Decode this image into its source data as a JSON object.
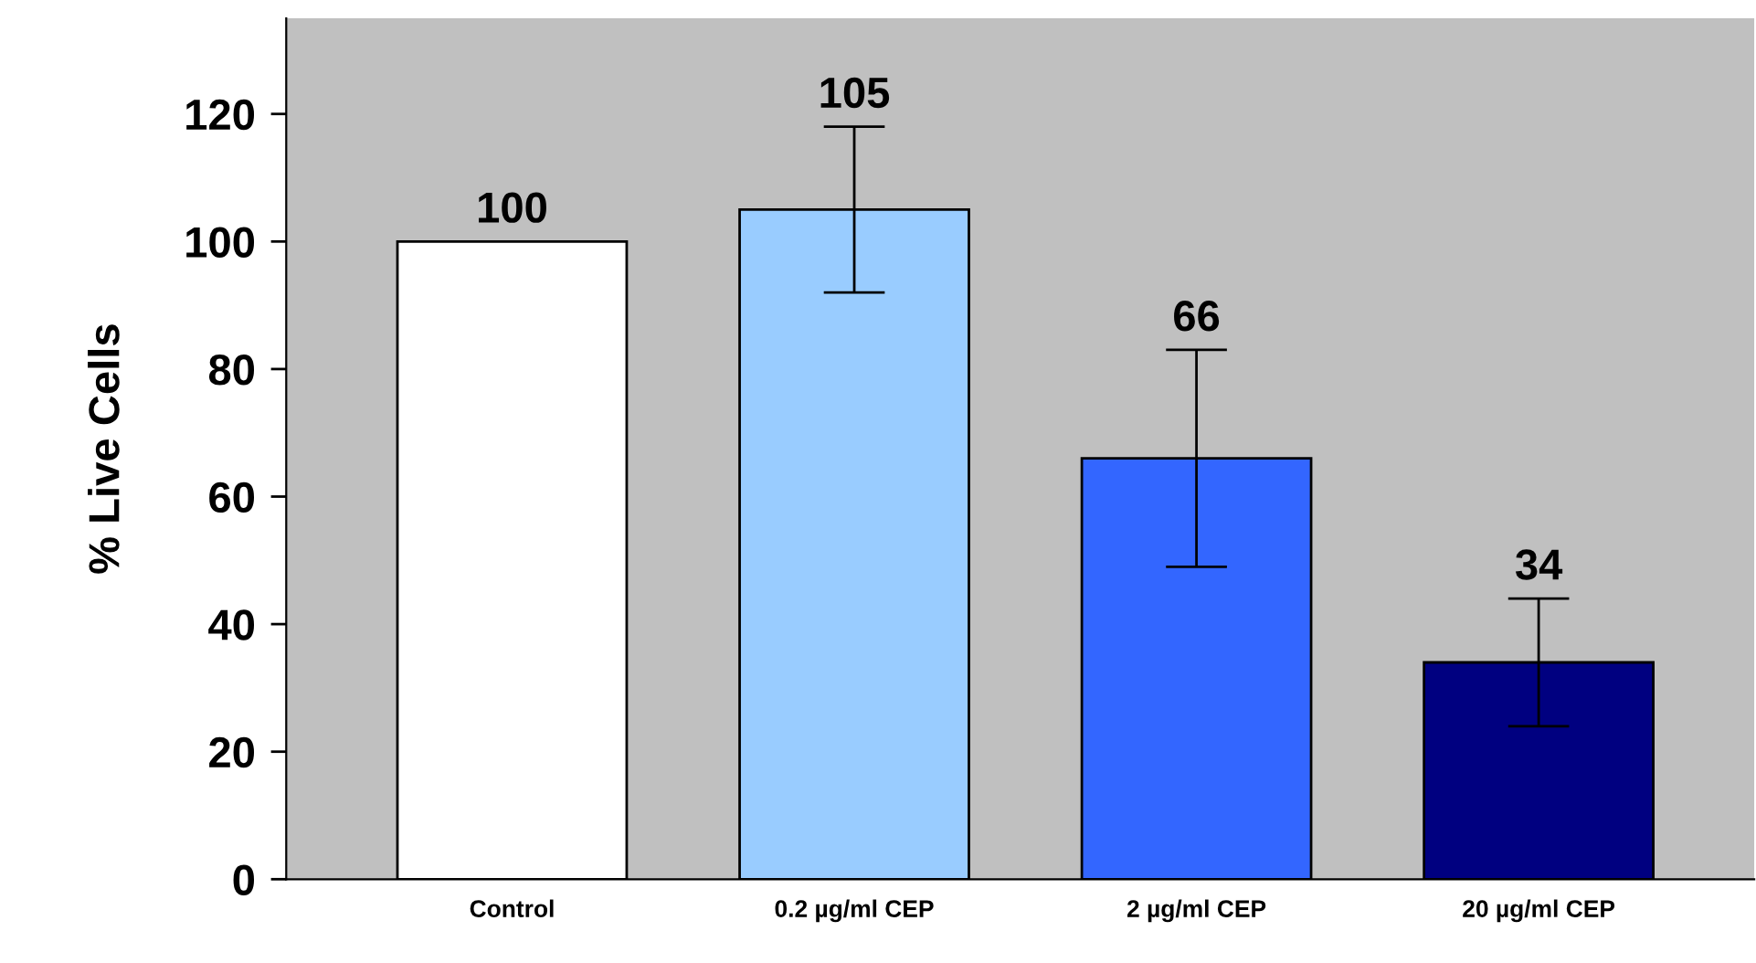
{
  "chart_data": {
    "type": "bar",
    "ylabel": "% Live Cells",
    "categories": [
      "Control",
      "0.2 µg/ml CEP",
      "2 µg/ml CEP",
      "20 µg/ml CEP"
    ],
    "values": [
      100,
      105,
      66,
      34
    ],
    "colors": [
      "#ffffff",
      "#99ccff",
      "#3366ff",
      "#000080"
    ],
    "errors": [
      null,
      13,
      17,
      10
    ],
    "ylim": [
      0,
      135
    ],
    "yticks": [
      0,
      20,
      40,
      60,
      80,
      100,
      120
    ],
    "data_labels": true,
    "grid": false,
    "legend": false
  }
}
